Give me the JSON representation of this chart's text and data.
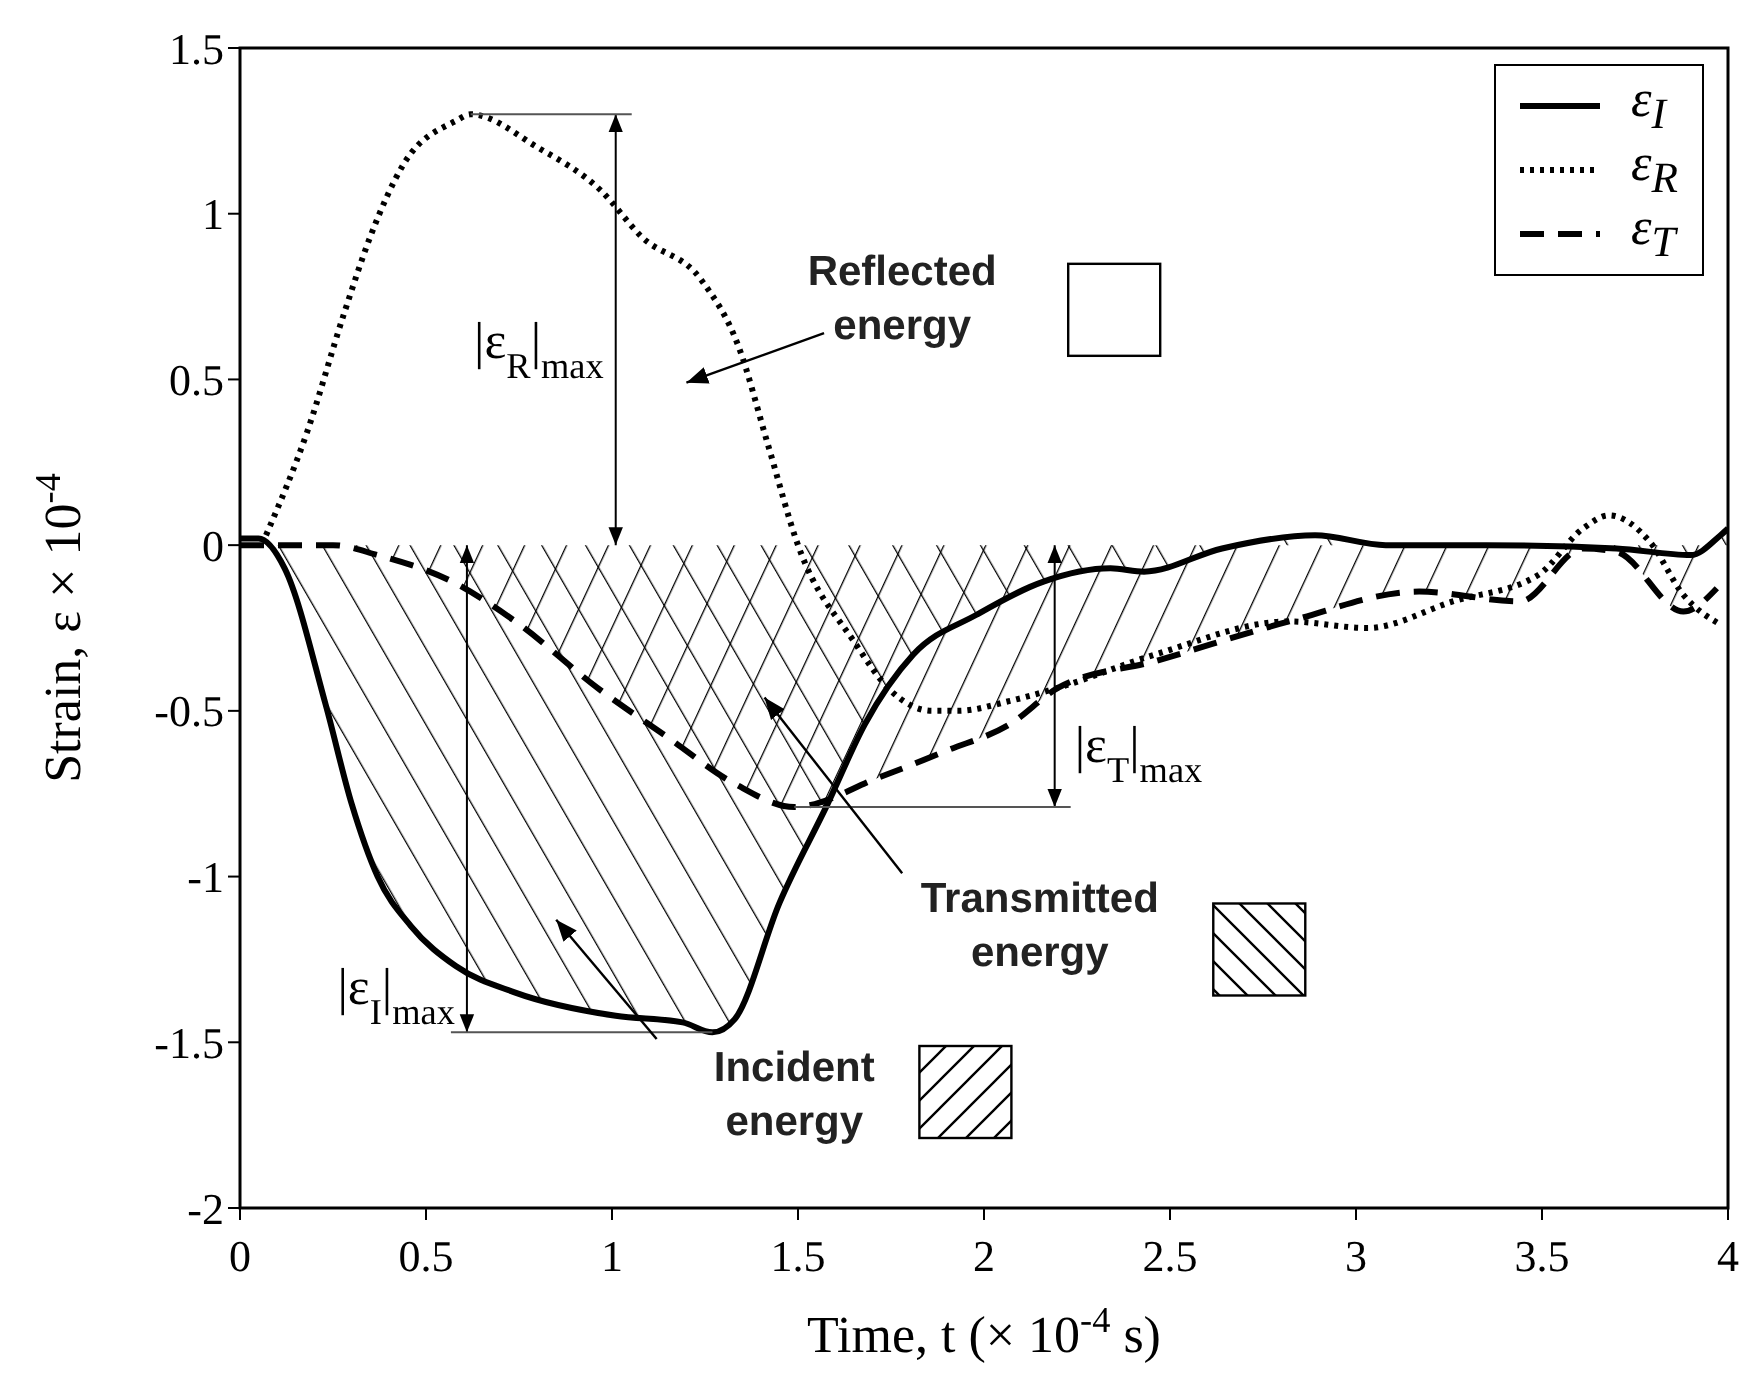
{
  "chart_data": {
    "type": "line",
    "xlabel": "Time, t (× 10$^{-4}$ s)",
    "ylabel": "Strain, ε × 10$^{-4}$",
    "xlim": [
      0,
      4
    ],
    "ylim": [
      -2,
      1.5
    ],
    "xticks": [
      0,
      0.5,
      1,
      1.5,
      2,
      2.5,
      3,
      3.5,
      4
    ],
    "yticks": [
      -2,
      -1.5,
      -1,
      -0.5,
      0,
      0.5,
      1,
      1.5
    ],
    "grid": false,
    "legend": "top right",
    "marker": "none",
    "series": [
      {
        "name": "ε$_{I}$",
        "type": "area",
        "color": "#000000",
        "line_style": "solid",
        "x": [
          0,
          0.05,
          0.12,
          0.23,
          0.3,
          0.37,
          0.46,
          0.58,
          0.74,
          1.01,
          1.19,
          1.27,
          1.33,
          1.45,
          1.58,
          1.68,
          1.81,
          1.98,
          2.16,
          2.34,
          2.43,
          2.64,
          2.89,
          3.08,
          3.35,
          3.7,
          3.9,
          3.98,
          4
        ],
        "values": [
          0.02,
          0.02,
          -0.07,
          -0.48,
          -0.78,
          -1.0,
          -1.15,
          -1.27,
          -1.35,
          -1.42,
          -1.44,
          -1.47,
          -1.43,
          -1.08,
          -0.78,
          -0.54,
          -0.33,
          -0.21,
          -0.11,
          -0.07,
          -0.08,
          -0.01,
          0.03,
          0,
          0,
          -0.01,
          -0.03,
          0.03,
          0.05
        ]
      },
      {
        "name": "ε$_{R}$",
        "type": "line",
        "color": "#000000",
        "line_style": "dotted",
        "x": [
          0.07,
          0.18,
          0.28,
          0.35,
          0.44,
          0.58,
          0.62,
          0.8,
          0.97,
          1.08,
          1.24,
          1.34,
          1.42,
          1.5,
          1.65,
          1.75,
          1.86,
          1.93,
          2.07,
          2.2,
          2.46,
          2.82,
          3.03,
          3.26,
          3.49,
          3.61,
          3.68,
          3.79,
          3.88,
          3.98
        ],
        "values": [
          0.03,
          0.34,
          0.7,
          0.93,
          1.15,
          1.28,
          1.3,
          1.2,
          1.07,
          0.93,
          0.8,
          0.6,
          0.3,
          0,
          -0.29,
          -0.44,
          -0.5,
          -0.5,
          -0.47,
          -0.43,
          -0.33,
          -0.23,
          -0.25,
          -0.17,
          -0.09,
          0.05,
          0.09,
          0.01,
          -0.15,
          -0.24
        ]
      },
      {
        "name": "ε$_{T}$",
        "type": "area",
        "color": "#000000",
        "line_style": "dashed",
        "x": [
          0,
          0.25,
          0.37,
          0.57,
          0.74,
          0.96,
          1.15,
          1.33,
          1.49,
          1.72,
          1.9,
          2.07,
          2.2,
          2.46,
          2.82,
          3.17,
          3.44,
          3.61,
          3.7,
          3.88,
          3.97
        ],
        "values": [
          0,
          0,
          -0.03,
          -0.11,
          -0.23,
          -0.43,
          -0.58,
          -0.72,
          -0.79,
          -0.7,
          -0.62,
          -0.54,
          -0.43,
          -0.35,
          -0.23,
          -0.14,
          -0.17,
          -0.01,
          -0.02,
          -0.2,
          -0.13
        ]
      }
    ],
    "annotations": [
      "|ε$_{R}$|$_{max}$",
      {
        "text": "|ε$_{I}$|$_{max}$",
        "x": 1.27,
        "y": -1.47
      },
      {
        "text": "|ε$_{T}$|$_{max}$",
        "x": 1.49,
        "y": -0.79
      },
      "Reflected energy",
      "Transmitted energy",
      "Incident energy"
    ]
  }
}
